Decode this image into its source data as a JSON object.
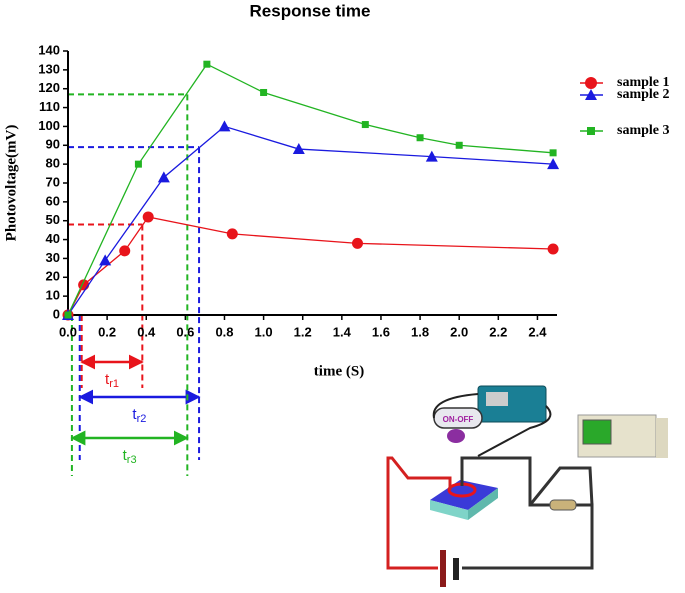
{
  "chart_data": {
    "type": "line",
    "title": "Response time",
    "x_label": "time (S)",
    "y_label": "Photovoltage(mV)",
    "xlim": [
      0,
      2.5
    ],
    "ylim": [
      0,
      140
    ],
    "xticks": [
      {
        "value": 0,
        "label": "0.0"
      },
      0.2,
      0.4,
      0.6,
      0.8,
      {
        "value": 1,
        "label": "1.0"
      },
      1.2,
      1.4,
      1.6,
      1.8,
      {
        "value": 2,
        "label": "2.0"
      },
      2.2,
      2.4
    ],
    "yticks": [
      0,
      10,
      20,
      30,
      40,
      50,
      60,
      70,
      80,
      90,
      100,
      110,
      120,
      130,
      140
    ],
    "legend_position": "right",
    "series": [
      {
        "name": "sample 1",
        "color": "#e8141b",
        "marker": "circle",
        "x": [
          0,
          0.08,
          0.29,
          0.41,
          0.84,
          1.48,
          2.48
        ],
        "values": [
          0,
          16,
          34,
          52,
          43,
          38,
          35
        ]
      },
      {
        "name": "sample 2",
        "color": "#1a1adf",
        "marker": "triangle",
        "x": [
          0,
          0.19,
          0.49,
          0.8,
          1.18,
          1.86,
          2.48
        ],
        "values": [
          0,
          29,
          73,
          100,
          88,
          84,
          80
        ]
      },
      {
        "name": "sample 3",
        "color": "#22b422",
        "marker": "square",
        "x": [
          0,
          0.36,
          0.71,
          1.0,
          1.52,
          1.8,
          2.0,
          2.48
        ],
        "values": [
          0,
          80,
          133,
          118,
          101,
          94,
          90,
          86
        ]
      }
    ],
    "rise_times": [
      {
        "label": {
          "main": "t",
          "sub": "r1"
        },
        "color": "#e8141b",
        "start": 0.07,
        "end": 0.38,
        "level": 48
      },
      {
        "label": {
          "main": "t",
          "sub": "r2"
        },
        "color": "#1a1adf",
        "start": 0.06,
        "end": 0.67,
        "level": 89
      },
      {
        "label": {
          "main": "t",
          "sub": "r3"
        },
        "color": "#22b422",
        "start": 0.02,
        "end": 0.61,
        "level": 117
      }
    ]
  },
  "diagram": {
    "switch_label": "ON-OFF"
  }
}
